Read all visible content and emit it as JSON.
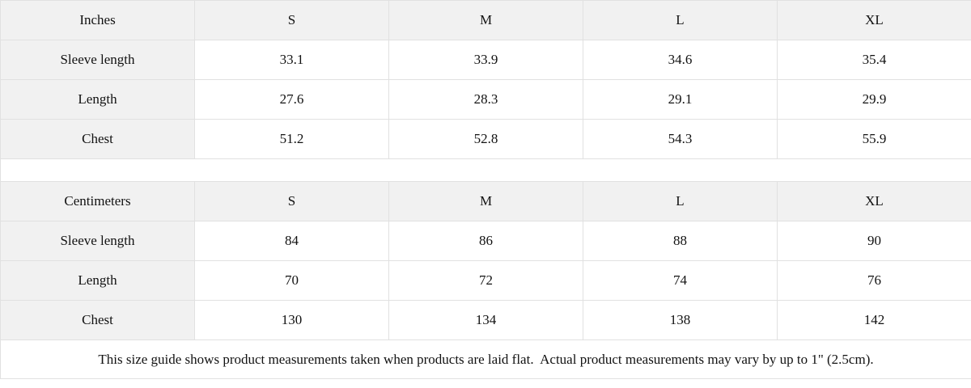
{
  "colors": {
    "header_bg": "#f1f1f1",
    "row_bg": "#ffffff",
    "border": "#e1e1e1",
    "text": "#121212"
  },
  "chart_data": [
    {
      "type": "table",
      "title": "Inches",
      "columns": [
        "Inches",
        "S",
        "M",
        "L",
        "XL"
      ],
      "rows": [
        [
          "Sleeve length",
          33.1,
          33.9,
          34.6,
          35.4
        ],
        [
          "Length",
          27.6,
          28.3,
          29.1,
          29.9
        ],
        [
          "Chest",
          51.2,
          52.8,
          54.3,
          55.9
        ]
      ]
    },
    {
      "type": "table",
      "title": "Centimeters",
      "columns": [
        "Centimeters",
        "S",
        "M",
        "L",
        "XL"
      ],
      "rows": [
        [
          "Sleeve length",
          84,
          86,
          88,
          90
        ],
        [
          "Length",
          70,
          72,
          74,
          76
        ],
        [
          "Chest",
          130,
          134,
          138,
          142
        ]
      ]
    }
  ],
  "footer_note": "This size guide shows product measurements taken when products are laid flat.  Actual product measurements may vary by up to 1\" (2.5cm)."
}
